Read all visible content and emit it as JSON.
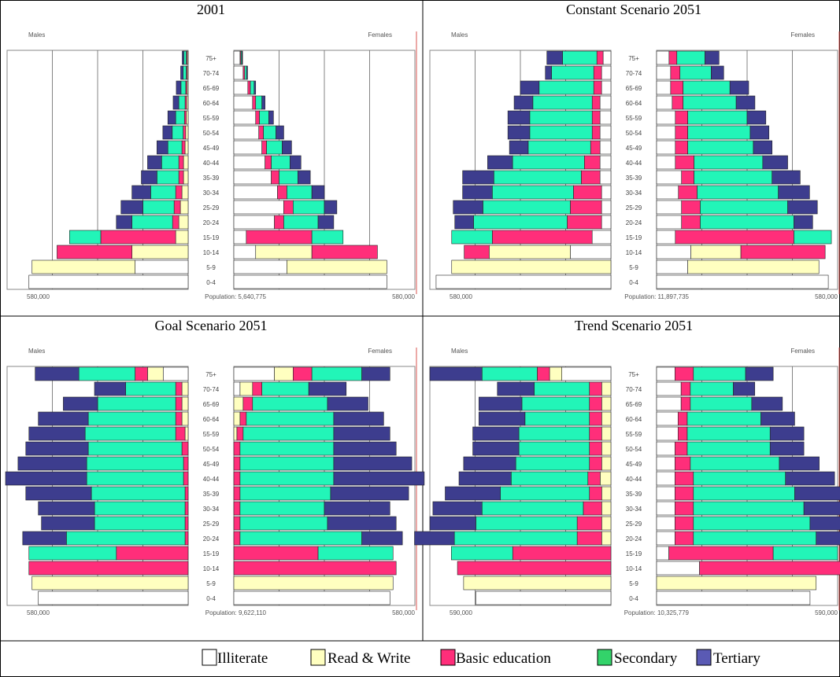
{
  "legend": [
    {
      "label": "Illiterate",
      "color": "#ffffff"
    },
    {
      "label": "Read & Write",
      "color": "#ffffc0"
    },
    {
      "label": "Basic education",
      "color": "#ff2e7a"
    },
    {
      "label": "Secondary",
      "color": "#33d36a"
    },
    {
      "label": "Tertiary",
      "color": "#5a5ab4"
    }
  ],
  "colors": {
    "illiterate": "#ffffff",
    "read_write": "#ffffc0",
    "basic": "#ff2e7a",
    "secondary": "#22f5b8",
    "tertiary": "#3d3d8e",
    "gridline": "#666666",
    "axis_line": "#d9534f"
  },
  "labels": {
    "males": "Males",
    "females": "Females",
    "population_prefix": "Population:"
  },
  "age_groups": [
    "0-4",
    "5-9",
    "10-14",
    "15-19",
    "20-24",
    "25-29",
    "30-34",
    "35-39",
    "40-44",
    "45-49",
    "50-54",
    "55-59",
    "60-64",
    "65-69",
    "70-74",
    "75+"
  ],
  "chart_data": [
    {
      "type": "bar",
      "title": "2001",
      "axis_max_label": "580,000",
      "axis_max": 580000,
      "population": "5,640,775",
      "segments": [
        "Illiterate",
        "Read & Write",
        "Basic education",
        "Secondary",
        "Tertiary"
      ],
      "males": [
        [
          510000,
          0,
          0,
          0,
          0
        ],
        [
          170000,
          330000,
          0,
          0,
          0
        ],
        [
          0,
          180000,
          240000,
          0,
          0
        ],
        [
          0,
          40000,
          240000,
          100000,
          0
        ],
        [
          0,
          30000,
          20000,
          130000,
          50000
        ],
        [
          0,
          25000,
          20000,
          100000,
          70000
        ],
        [
          0,
          20000,
          20000,
          80000,
          60000
        ],
        [
          0,
          15000,
          15000,
          70000,
          50000
        ],
        [
          0,
          15000,
          15000,
          55000,
          45000
        ],
        [
          0,
          10000,
          10000,
          45000,
          35000
        ],
        [
          0,
          8000,
          8000,
          35000,
          30000
        ],
        [
          0,
          6000,
          6000,
          28000,
          25000
        ],
        [
          0,
          5000,
          5000,
          20000,
          18000
        ],
        [
          0,
          4000,
          4000,
          15000,
          15000
        ],
        [
          0,
          3000,
          3000,
          10000,
          8000
        ],
        [
          0,
          3000,
          3000,
          8000,
          5000
        ]
      ],
      "females": [
        [
          490000,
          0,
          0,
          0,
          0
        ],
        [
          170000,
          320000,
          0,
          0,
          0
        ],
        [
          70000,
          180000,
          210000,
          0,
          0
        ],
        [
          40000,
          0,
          210000,
          100000,
          0
        ],
        [
          130000,
          0,
          30000,
          110000,
          50000
        ],
        [
          160000,
          0,
          30000,
          100000,
          40000
        ],
        [
          140000,
          0,
          30000,
          80000,
          40000
        ],
        [
          120000,
          0,
          25000,
          60000,
          40000
        ],
        [
          100000,
          0,
          20000,
          60000,
          35000
        ],
        [
          90000,
          0,
          15000,
          50000,
          30000
        ],
        [
          80000,
          0,
          15000,
          40000,
          25000
        ],
        [
          70000,
          0,
          12000,
          30000,
          15000
        ],
        [
          60000,
          0,
          10000,
          20000,
          10000
        ],
        [
          45000,
          0,
          8000,
          12000,
          5000
        ],
        [
          30000,
          0,
          5000,
          6000,
          3000
        ],
        [
          20000,
          0,
          3000,
          3000,
          2000
        ]
      ]
    },
    {
      "type": "bar",
      "title": "Constant Scenario 2051",
      "axis_max_label": "580,000",
      "axis_max": 580000,
      "population": "11,897,735",
      "segments": [
        "Illiterate",
        "Read & Write",
        "Basic education",
        "Secondary",
        "Tertiary"
      ],
      "males": [
        [
          560000,
          0,
          0,
          0,
          0
        ],
        [
          0,
          510000,
          0,
          0,
          0
        ],
        [
          130000,
          260000,
          80000,
          0,
          0
        ],
        [
          60000,
          0,
          320000,
          130000,
          0
        ],
        [
          30000,
          0,
          110000,
          300000,
          60000
        ],
        [
          30000,
          0,
          100000,
          280000,
          95000
        ],
        [
          30000,
          0,
          90000,
          260000,
          95000
        ],
        [
          35000,
          0,
          60000,
          280000,
          100000
        ],
        [
          35000,
          0,
          50000,
          230000,
          80000
        ],
        [
          35000,
          0,
          30000,
          200000,
          60000
        ],
        [
          35000,
          0,
          25000,
          200000,
          70000
        ],
        [
          35000,
          0,
          25000,
          200000,
          70000
        ],
        [
          35000,
          0,
          25000,
          190000,
          60000
        ],
        [
          30000,
          0,
          25000,
          175000,
          60000
        ],
        [
          30000,
          0,
          25000,
          135000,
          20000
        ],
        [
          25000,
          0,
          20000,
          110000,
          50000
        ]
      ],
      "females": [
        [
          550000,
          0,
          0,
          0,
          0
        ],
        [
          100000,
          420000,
          0,
          0,
          0
        ],
        [
          110000,
          160000,
          270000,
          0,
          0
        ],
        [
          60000,
          0,
          380000,
          120000,
          0
        ],
        [
          80000,
          0,
          60000,
          300000,
          60000
        ],
        [
          80000,
          0,
          60000,
          280000,
          95000
        ],
        [
          70000,
          0,
          60000,
          260000,
          100000
        ],
        [
          80000,
          0,
          40000,
          250000,
          90000
        ],
        [
          60000,
          0,
          60000,
          220000,
          80000
        ],
        [
          60000,
          0,
          40000,
          210000,
          60000
        ],
        [
          60000,
          0,
          40000,
          200000,
          60000
        ],
        [
          60000,
          0,
          40000,
          190000,
          60000
        ],
        [
          50000,
          0,
          35000,
          170000,
          60000
        ],
        [
          45000,
          0,
          40000,
          150000,
          60000
        ],
        [
          45000,
          0,
          30000,
          100000,
          40000
        ],
        [
          40000,
          0,
          25000,
          90000,
          45000
        ]
      ]
    },
    {
      "type": "bar",
      "title": "Goal Scenario 2051",
      "axis_max_label": "580,000",
      "axis_max": 580000,
      "population": "9,622,110",
      "segments": [
        "Illiterate",
        "Read & Write",
        "Basic education",
        "Secondary",
        "Tertiary"
      ],
      "males": [
        [
          480000,
          0,
          0,
          0,
          0
        ],
        [
          0,
          500000,
          0,
          0,
          0
        ],
        [
          0,
          0,
          510000,
          0,
          0
        ],
        [
          0,
          0,
          230000,
          280000,
          0
        ],
        [
          0,
          0,
          10000,
          380000,
          140000
        ],
        [
          0,
          0,
          10000,
          290000,
          170000
        ],
        [
          0,
          0,
          10000,
          290000,
          180000
        ],
        [
          0,
          0,
          10000,
          300000,
          210000
        ],
        [
          0,
          0,
          15000,
          310000,
          260000
        ],
        [
          0,
          0,
          15000,
          310000,
          220000
        ],
        [
          0,
          0,
          20000,
          300000,
          200000
        ],
        [
          0,
          10000,
          30000,
          290000,
          180000
        ],
        [
          0,
          20000,
          20000,
          280000,
          160000
        ],
        [
          0,
          20000,
          20000,
          250000,
          110000
        ],
        [
          0,
          20000,
          20000,
          160000,
          100000
        ],
        [
          80000,
          50000,
          40000,
          180000,
          140000
        ]
      ],
      "females": [
        [
          500000,
          0,
          0,
          0,
          0
        ],
        [
          0,
          510000,
          0,
          0,
          0
        ],
        [
          0,
          0,
          520000,
          0,
          0
        ],
        [
          0,
          0,
          270000,
          240000,
          0
        ],
        [
          0,
          0,
          20000,
          390000,
          130000
        ],
        [
          0,
          0,
          20000,
          280000,
          220000
        ],
        [
          0,
          0,
          20000,
          270000,
          210000
        ],
        [
          0,
          0,
          20000,
          290000,
          250000
        ],
        [
          0,
          0,
          20000,
          300000,
          290000
        ],
        [
          0,
          0,
          20000,
          300000,
          250000
        ],
        [
          0,
          0,
          20000,
          300000,
          200000
        ],
        [
          0,
          10000,
          20000,
          290000,
          180000
        ],
        [
          0,
          20000,
          20000,
          280000,
          160000
        ],
        [
          0,
          30000,
          30000,
          240000,
          130000
        ],
        [
          20000,
          40000,
          30000,
          150000,
          120000
        ],
        [
          130000,
          60000,
          60000,
          160000,
          90000
        ]
      ]
    },
    {
      "type": "bar",
      "title": "Trend Scenario 2051",
      "axis_max_label": "590,000",
      "axis_max": 590000,
      "population": "10,325,779",
      "segments": [
        "Illiterate",
        "Read & Write",
        "Basic education",
        "Secondary",
        "Tertiary"
      ],
      "males": [
        [
          440000,
          0,
          0,
          0,
          0
        ],
        [
          0,
          480000,
          0,
          0,
          0
        ],
        [
          0,
          0,
          500000,
          0,
          0
        ],
        [
          0,
          0,
          320000,
          200000,
          0
        ],
        [
          0,
          30000,
          80000,
          400000,
          130000
        ],
        [
          0,
          30000,
          80000,
          330000,
          150000
        ],
        [
          0,
          30000,
          60000,
          330000,
          160000
        ],
        [
          0,
          30000,
          40000,
          290000,
          180000
        ],
        [
          0,
          35000,
          40000,
          250000,
          170000
        ],
        [
          0,
          30000,
          40000,
          240000,
          170000
        ],
        [
          0,
          30000,
          40000,
          230000,
          150000
        ],
        [
          0,
          30000,
          40000,
          230000,
          150000
        ],
        [
          0,
          30000,
          40000,
          210000,
          150000
        ],
        [
          0,
          30000,
          40000,
          220000,
          140000
        ],
        [
          0,
          30000,
          40000,
          180000,
          120000
        ],
        [
          160000,
          40000,
          40000,
          180000,
          170000
        ]
      ],
      "females": [
        [
          500000,
          0,
          0,
          0,
          0
        ],
        [
          0,
          520000,
          0,
          0,
          0
        ],
        [
          140000,
          0,
          490000,
          0,
          0
        ],
        [
          40000,
          0,
          340000,
          210000,
          0
        ],
        [
          60000,
          0,
          60000,
          400000,
          140000
        ],
        [
          60000,
          0,
          60000,
          380000,
          150000
        ],
        [
          60000,
          0,
          60000,
          360000,
          160000
        ],
        [
          60000,
          0,
          60000,
          330000,
          170000
        ],
        [
          60000,
          0,
          60000,
          300000,
          160000
        ],
        [
          60000,
          0,
          50000,
          290000,
          130000
        ],
        [
          60000,
          0,
          40000,
          270000,
          110000
        ],
        [
          70000,
          0,
          30000,
          270000,
          110000
        ],
        [
          70000,
          0,
          30000,
          240000,
          110000
        ],
        [
          80000,
          0,
          30000,
          200000,
          100000
        ],
        [
          80000,
          0,
          30000,
          140000,
          70000
        ],
        [
          60000,
          0,
          60000,
          170000,
          90000
        ]
      ]
    }
  ]
}
